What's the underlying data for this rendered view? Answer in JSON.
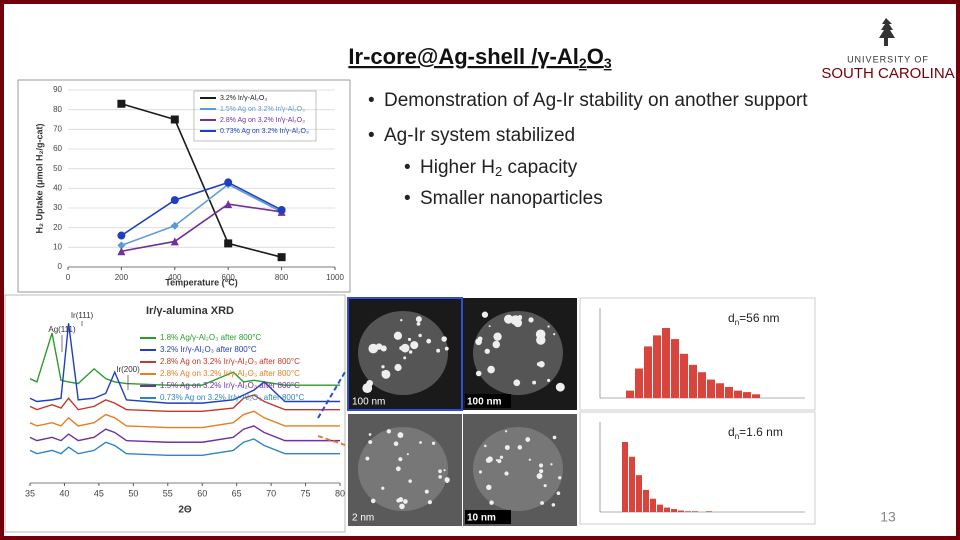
{
  "title": {
    "parts": [
      "Ir-core@Ag-shell /γ-Al",
      "2",
      "O",
      "3"
    ]
  },
  "logo": {
    "line1": "UNIVERSITY OF",
    "line2": "SOUTH CAROLINA"
  },
  "bullets": [
    {
      "parts": [
        "Demonstration of Ag-Ir stability on another support"
      ]
    },
    {
      "parts": [
        "Ag-Ir system stabilized"
      ],
      "sub": [
        {
          "parts": [
            "Higher H",
            "2",
            " capacity"
          ]
        },
        {
          "parts": [
            "Smaller nanoparticles"
          ]
        }
      ]
    }
  ],
  "uptake_chart": {
    "type": "line",
    "x_label": "Temperature (°C)",
    "y_label": "H₂ Uptake (μmol H₂/g-cat)",
    "x": [
      200,
      400,
      600,
      800
    ],
    "xlim": [
      0,
      1000
    ],
    "xticks": [
      0,
      200,
      400,
      600,
      800,
      1000
    ],
    "ylim": [
      0,
      90
    ],
    "yticks": [
      0,
      10,
      20,
      30,
      40,
      50,
      60,
      70,
      80,
      90
    ],
    "grid": true,
    "legend": "upper right",
    "series": [
      {
        "name": "3.2% Ir/γ-Al₂O₃",
        "color": "#1a1a1a",
        "marker": "square",
        "values": [
          83,
          75,
          12,
          5
        ]
      },
      {
        "name": "1.5% Ag on 3.2% Ir/γ-Al₂O₃",
        "color": "#5b9bd5",
        "marker": "diamond",
        "values": [
          11,
          21,
          42,
          28
        ]
      },
      {
        "name": "2.8% Ag on 3.2% Ir/γ-Al₂O₃",
        "color": "#7030a0",
        "marker": "triangle",
        "values": [
          8,
          13,
          32,
          28
        ]
      },
      {
        "name": "0.73% Ag on 3.2% Ir/γ-Al₂O₃",
        "color": "#1f3fbf",
        "marker": "circle",
        "values": [
          16,
          34,
          43,
          29
        ]
      }
    ]
  },
  "xrd_chart": {
    "type": "line",
    "title": "Ir/γ-alumina XRD",
    "x_label": "2Θ",
    "annotations": [
      "Ag(111)",
      "Ir(111)",
      "Ir(200)"
    ],
    "x": [
      35,
      36,
      38.2,
      39.5,
      40.6,
      42,
      44.3,
      46,
      47.3,
      49,
      55,
      60,
      64.5,
      66,
      67.5,
      69,
      72,
      80
    ],
    "xlim": [
      35,
      80
    ],
    "xticks": [
      35,
      40,
      45,
      50,
      55,
      60,
      65,
      70,
      75,
      80
    ],
    "ylim": [
      0,
      100
    ],
    "series": [
      {
        "name": "1.8% Ag/γ-Al₂O₃ after 800°C",
        "color": "#2a9d2a",
        "values": [
          64,
          62,
          92,
          63,
          62,
          61,
          70,
          64,
          62,
          61,
          60,
          60,
          68,
          62,
          63,
          62,
          60,
          60
        ]
      },
      {
        "name": "3.2% Ir/γ-Al₂O₃ after 800°C",
        "color": "#1f3fbf",
        "values": [
          52,
          50,
          51,
          52,
          98,
          51,
          52,
          55,
          68,
          51,
          49,
          49,
          51,
          54,
          57,
          62,
          50,
          50
        ]
      },
      {
        "name": "2.8% Ag on 3.2% Ir/γ-Al₂O₃ after 800°C",
        "color": "#c0392b",
        "values": [
          47,
          45,
          48,
          46,
          52,
          45,
          47,
          51,
          49,
          45,
          44,
          44,
          46,
          52,
          54,
          50,
          45,
          45
        ]
      },
      {
        "name": "2.8% Ag on 3.2% Ir/γ-Al₂O₃ after 800°C",
        "color": "#e67e22",
        "values": [
          37,
          35,
          37,
          35,
          40,
          35,
          37,
          42,
          40,
          35,
          34,
          34,
          37,
          42,
          44,
          40,
          35,
          35
        ]
      },
      {
        "name": "1.5% Ag on 3.2% Ir/γ-Al₂O₃ after 800°C",
        "color": "#7030a0",
        "values": [
          28,
          26,
          28,
          26,
          30,
          26,
          28,
          33,
          31,
          26,
          25,
          25,
          28,
          33,
          35,
          31,
          26,
          26
        ]
      },
      {
        "name": "0.73% Ag on 3.2% Ir/γ-Al₂O₃ after 800°C",
        "color": "#2e86c1",
        "values": [
          20,
          18,
          20,
          18,
          22,
          18,
          20,
          25,
          23,
          18,
          17,
          17,
          20,
          25,
          27,
          23,
          18,
          18
        ]
      }
    ]
  },
  "micrographs": [
    {
      "scale": "100 nm"
    },
    {
      "scale": "100 nm"
    },
    {
      "scale": "2 nm"
    },
    {
      "scale": "10 nm"
    }
  ],
  "histograms": [
    {
      "type": "bar",
      "label_parts": [
        "d",
        "n",
        "=56 nm"
      ],
      "color": "#d9443c",
      "values": [
        10,
        40,
        70,
        85,
        95,
        80,
        60,
        45,
        35,
        25,
        20,
        15,
        10,
        8,
        5
      ]
    },
    {
      "type": "bar",
      "label_parts": [
        "d",
        "n",
        "=1.6 nm"
      ],
      "color": "#d9443c",
      "values": [
        95,
        75,
        50,
        30,
        18,
        10,
        6,
        4,
        2,
        1,
        1,
        0,
        1,
        0,
        0
      ]
    }
  ],
  "page_number": "13"
}
